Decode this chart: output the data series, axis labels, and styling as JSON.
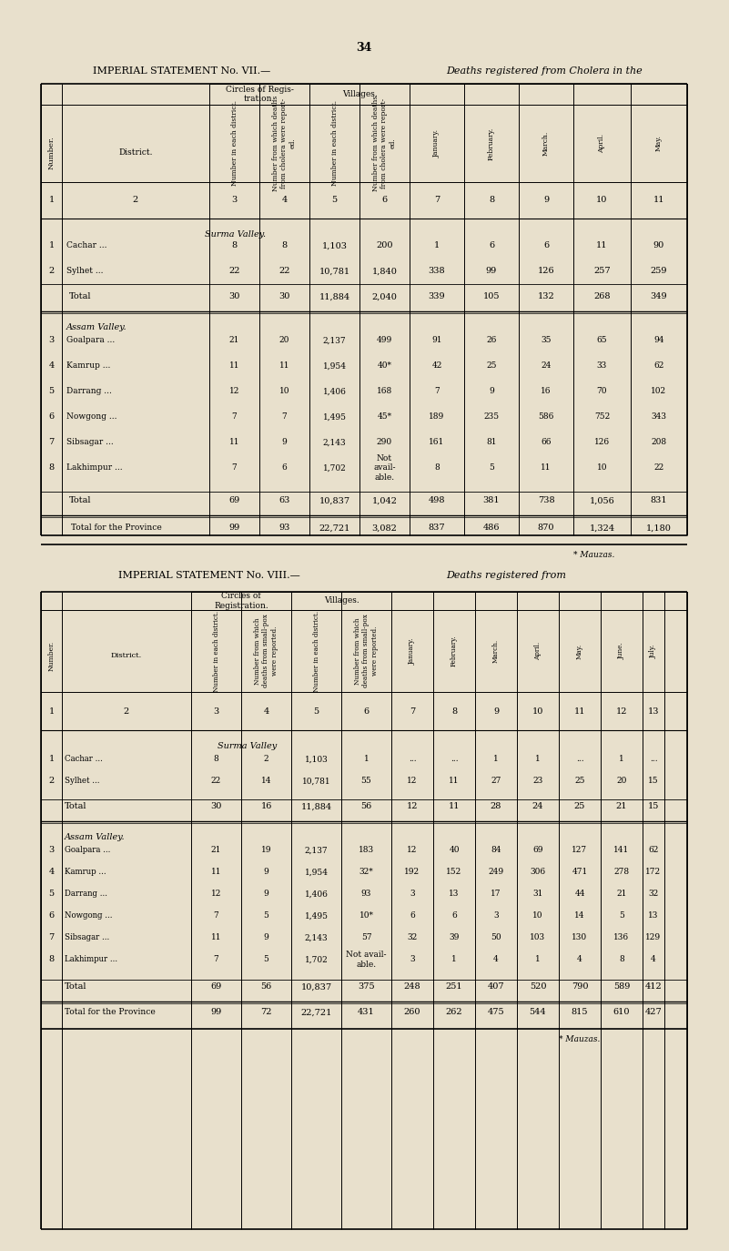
{
  "page_number": "34",
  "bg_color": "#e8e0cc",
  "table1": {
    "title": "IMPERIAL STATEMENT No. VII.—",
    "title_italic": "Deaths registered from Cholera in the",
    "header_col1": "Number.",
    "header_col2": "District.",
    "header_group1": "Circles of Regis-\ntration.",
    "header_group2": "Villages.",
    "col3_header": "Number in each district.",
    "col4_header": "Number from which deaths from cholera were report-\ned.",
    "col5_header": "Number in each district.",
    "col6_header": "Number from which deaths from cholera were report-\ned.",
    "col7_header": "January.",
    "col8_header": "February.",
    "col9_header": "March.",
    "col10_header": "April.",
    "col11_header": "May.",
    "col_numbers": [
      "1",
      "2",
      "3",
      "4",
      "5",
      "6",
      "7",
      "8",
      "9",
      "10",
      "11"
    ],
    "sections": [
      {
        "section_name": "Surma Valley.",
        "rows": [
          {
            "num": "1",
            "district": "Cachar ...",
            "c3": "8",
            "c4": "8",
            "c5": "1,103",
            "c6": "200",
            "c7": "1",
            "c8": "6",
            "c9": "6",
            "c10": "11",
            "c11": "90"
          },
          {
            "num": "2",
            "district": "Sylhet ...",
            "c3": "22",
            "c4": "22",
            "c5": "10,781",
            "c6": "1,840",
            "c7": "338",
            "c8": "99",
            "c9": "126",
            "c10": "257",
            "c11": "259"
          }
        ],
        "total": {
          "district": "Total",
          "c3": "30",
          "c4": "30",
          "c5": "11,884",
          "c6": "2,040",
          "c7": "339",
          "c8": "105",
          "c9": "132",
          "c10": "268",
          "c11": "349"
        }
      },
      {
        "section_name": "Assam Valley.",
        "rows": [
          {
            "num": "3",
            "district": "Goalpara ...",
            "c3": "21",
            "c4": "20",
            "c5": "2,137",
            "c6": "499",
            "c7": "91",
            "c8": "26",
            "c9": "35",
            "c10": "65",
            "c11": "94"
          },
          {
            "num": "4",
            "district": "Kamrup ...",
            "c3": "11",
            "c4": "11",
            "c5": "1,954",
            "c6": "40*",
            "c7": "42",
            "c8": "25",
            "c9": "24",
            "c10": "33",
            "c11": "62"
          },
          {
            "num": "5",
            "district": "Darrang ...",
            "c3": "12",
            "c4": "10",
            "c5": "1,406",
            "c6": "168",
            "c7": "7",
            "c8": "9",
            "c9": "16",
            "c10": "70",
            "c11": "102"
          },
          {
            "num": "6",
            "district": "Nowgong ...",
            "c3": "7",
            "c4": "7",
            "c5": "1,495",
            "c6": "45*",
            "c7": "189",
            "c8": "235",
            "c9": "586",
            "c10": "752",
            "c11": "343"
          },
          {
            "num": "7",
            "district": "Sibsagar ...",
            "c3": "11",
            "c4": "9",
            "c5": "2,143",
            "c6": "290",
            "c7": "161",
            "c8": "81",
            "c9": "66",
            "c10": "126",
            "c11": "208"
          },
          {
            "num": "8",
            "district": "Lakhimpur ...",
            "c3": "7",
            "c4": "6",
            "c5": "1,702",
            "c6": "Not\navail-\nable.",
            "c7": "8",
            "c8": "5",
            "c9": "11",
            "c10": "10",
            "c11": "22"
          }
        ],
        "total": {
          "district": "Total",
          "c3": "69",
          "c4": "63",
          "c5": "10,837",
          "c6": "1,042",
          "c7": "498",
          "c8": "381",
          "c9": "738",
          "c10": "1,056",
          "c11": "831"
        }
      }
    ],
    "grand_total": {
      "district": "Total for the Province",
      "c3": "99",
      "c4": "93",
      "c5": "22,721",
      "c6": "3,082",
      "c7": "837",
      "c8": "486",
      "c9": "870",
      "c10": "1,324",
      "c11": "1,180"
    },
    "footnote": "* Mauzas."
  },
  "table2": {
    "title": "IMPERIAL STATEMENT No. VIII.—",
    "title_italic": "Deaths registered from",
    "col_numbers": [
      "1",
      "2",
      "3",
      "4",
      "5",
      "6",
      "7",
      "8",
      "9",
      "10",
      "11",
      "12",
      "13"
    ],
    "header_group1": "Circles of\nRegistration.",
    "header_group2": "Villages.",
    "col3_header": "Number in each district.",
    "col4_header": "Number from which deaths from small-pox were reported.",
    "col5_header": "Number in each district.",
    "col6_header": "Number from which deaths from small-pox were reported.",
    "col7_header": "January.",
    "col8_header": "February.",
    "col9_header": "March.",
    "col10_header": "April.",
    "col11_header": "May.",
    "col12_header": "June.",
    "col13_header": "July.",
    "sections": [
      {
        "section_name": "Surma Valley",
        "rows": [
          {
            "num": "1",
            "district": "Cachar ...",
            "c3": "8",
            "c4": "2",
            "c5": "1,103",
            "c6": "1",
            "c7": "...",
            "c8": "...",
            "c9": "1",
            "c10": "1",
            "c11": "...",
            "c12": "1",
            "c13": "..."
          },
          {
            "num": "2",
            "district": "Sylhet ...",
            "c3": "22",
            "c4": "14",
            "c5": "10,781",
            "c6": "55",
            "c7": "12",
            "c8": "11",
            "c9": "27",
            "c10": "23",
            "c11": "25",
            "c12": "20",
            "c13": "15"
          }
        ],
        "total": {
          "district": "Total",
          "c3": "30",
          "c4": "16",
          "c5": "11,884",
          "c6": "56",
          "c7": "12",
          "c8": "11",
          "c9": "28",
          "c10": "24",
          "c11": "25",
          "c12": "21",
          "c13": "15"
        }
      },
      {
        "section_name": "Assam Valley.",
        "rows": [
          {
            "num": "3",
            "district": "Goalpara ...",
            "c3": "21",
            "c4": "19",
            "c5": "2,137",
            "c6": "183",
            "c7": "12",
            "c8": "40",
            "c9": "84",
            "c10": "69",
            "c11": "127",
            "c12": "141",
            "c13": "62"
          },
          {
            "num": "4",
            "district": "Kamrup ...",
            "c3": "11",
            "c4": "9",
            "c5": "1,954",
            "c6": "32*",
            "c7": "192",
            "c8": "152",
            "c9": "249",
            "c10": "306",
            "c11": "471",
            "c12": "278",
            "c13": "172"
          },
          {
            "num": "5",
            "district": "Darrang ...",
            "c3": "12",
            "c4": "9",
            "c5": "1,406",
            "c6": "93",
            "c7": "3",
            "c8": "13",
            "c9": "17",
            "c10": "31",
            "c11": "44",
            "c12": "21",
            "c13": "32"
          },
          {
            "num": "6",
            "district": "Nowgong ...",
            "c3": "7",
            "c4": "5",
            "c5": "1,495",
            "c6": "10*",
            "c7": "6",
            "c8": "6",
            "c9": "3",
            "c10": "10",
            "c11": "14",
            "c12": "5",
            "c13": "13"
          },
          {
            "num": "7",
            "district": "Sibsagar ...",
            "c3": "11",
            "c4": "9",
            "c5": "2,143",
            "c6": "57",
            "c7": "32",
            "c8": "39",
            "c9": "50",
            "c10": "103",
            "c11": "130",
            "c12": "136",
            "c13": "129"
          },
          {
            "num": "8",
            "district": "Lakhimpur ...",
            "c3": "7",
            "c4": "5",
            "c5": "1,702",
            "c6": "Not avail-\nable.",
            "c7": "3",
            "c8": "1",
            "c9": "4",
            "c10": "1",
            "c11": "4",
            "c12": "8",
            "c13": "4"
          }
        ],
        "total": {
          "district": "Total",
          "c3": "69",
          "c4": "56",
          "c5": "10,837",
          "c6": "375",
          "c7": "248",
          "c8": "251",
          "c9": "407",
          "c10": "520",
          "c11": "790",
          "c12": "589",
          "c13": "412"
        },
        "grand_total": {
          "district": "Total for the Province",
          "c3": "99",
          "c4": "72",
          "c5": "22,721",
          "c6": "431",
          "c7": "260",
          "c8": "262",
          "c9": "475",
          "c10": "544",
          "c11": "815",
          "c12": "610",
          "c13": "427"
        }
      }
    ],
    "footnote": "* Mauzas."
  }
}
